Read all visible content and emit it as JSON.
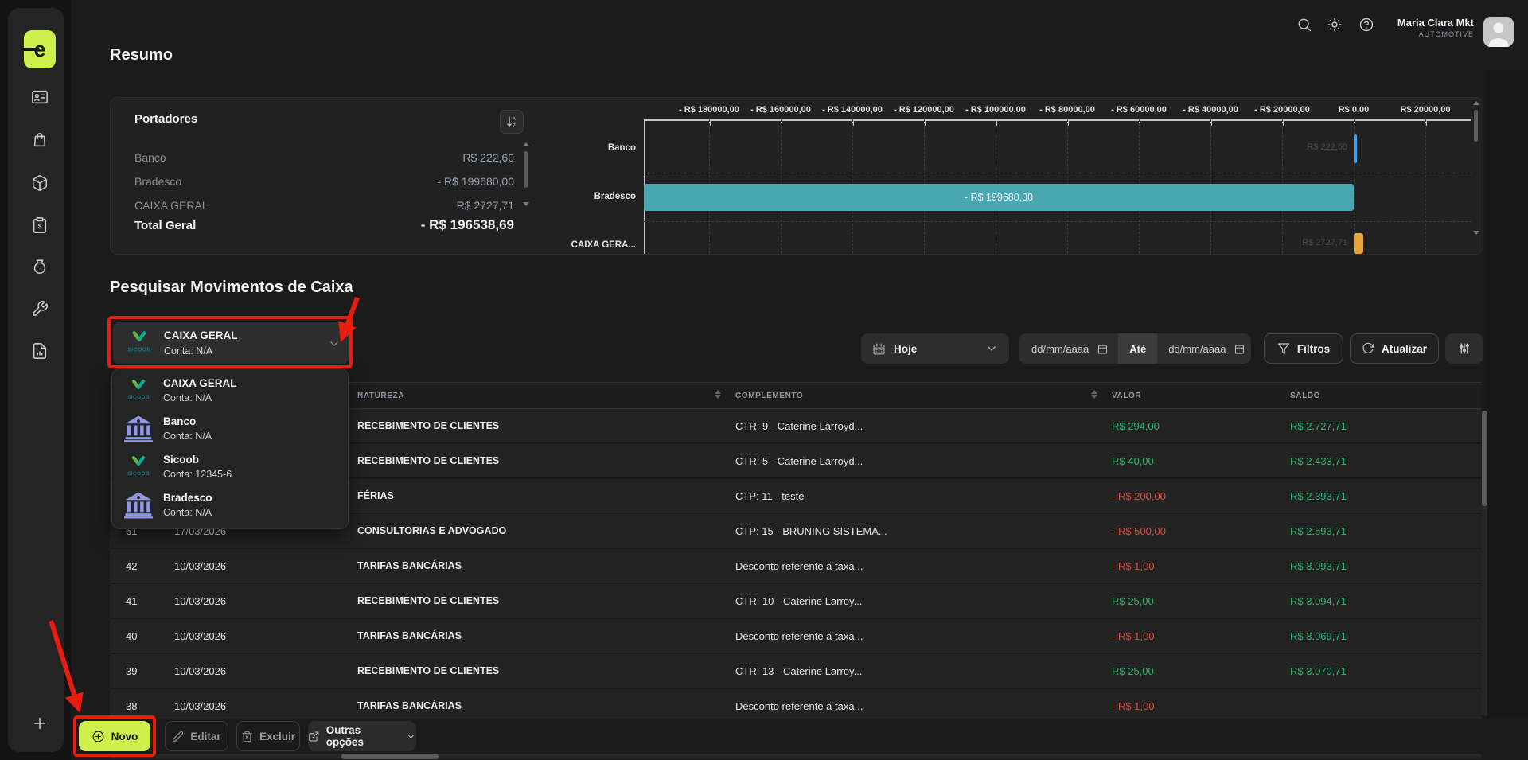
{
  "brand": {
    "sicoob_word": "SICOOB"
  },
  "sidebar": {
    "items": [
      "contacts-card",
      "shopping-bag",
      "package",
      "invoice-clipboard",
      "money-bag",
      "tools-wrench",
      "report-file"
    ]
  },
  "topbar": {
    "user_name": "Maria Clara Mkt",
    "user_role": "AUTOMOTIVE"
  },
  "resumo": {
    "title": "Resumo",
    "portadores": {
      "title": "Portadores",
      "rows": [
        {
          "label": "Banco",
          "value": "R$ 222,60"
        },
        {
          "label": "Bradesco",
          "value": "- R$ 199680,00"
        },
        {
          "label": "CAIXA GERAL",
          "value": "R$ 2727,71"
        }
      ],
      "total_label": "Total Geral",
      "total_value": "- R$ 196538,69"
    }
  },
  "chart_data": {
    "type": "bar",
    "orientation": "horizontal",
    "title": "",
    "categories": [
      "Banco",
      "Bradesco",
      "CAIXA GERAL"
    ],
    "category_labels_display": [
      "Banco",
      "Bradesco",
      "CAIXA GERA..."
    ],
    "values": [
      222.6,
      -199680.0,
      2727.71
    ],
    "bar_labels": [
      "R$ 222,60",
      "- R$ 199680,00",
      "R$ 2727,71"
    ],
    "bar_colors": [
      "#38a3f2",
      "#49a7b2",
      "#e8a33b"
    ],
    "x_ticks": [
      -180000,
      -160000,
      -140000,
      -120000,
      -100000,
      -80000,
      -60000,
      -40000,
      -20000,
      0,
      20000
    ],
    "x_tick_labels": [
      "- R$ 180000,00",
      "- R$ 160000,00",
      "- R$ 140000,00",
      "- R$ 120000,00",
      "- R$ 100000,00",
      "- R$ 80000,00",
      "- R$ 60000,00",
      "- R$ 40000,00",
      "- R$ 20000,00",
      "R$ 0,00",
      "R$ 20000,00"
    ],
    "xlim": [
      -198000,
      32000
    ],
    "grid": true,
    "legend": false
  },
  "pesquisar": {
    "title": "Pesquisar Movimentos de Caixa",
    "selected_portador": {
      "name": "CAIXA GERAL",
      "conta": "Conta: N/A",
      "icon": "sicoob"
    },
    "options": [
      {
        "name": "CAIXA GERAL",
        "conta": "Conta: N/A",
        "icon": "sicoob"
      },
      {
        "name": "Banco",
        "conta": "Conta: N/A",
        "icon": "bank"
      },
      {
        "name": "Sicoob",
        "conta": "Conta: 12345-6",
        "icon": "sicoob"
      },
      {
        "name": "Bradesco",
        "conta": "Conta: N/A",
        "icon": "bank"
      }
    ],
    "filters": {
      "period": "Hoje",
      "date_from_placeholder": "dd/mm/aaaa",
      "range_separator": "Até",
      "date_to_placeholder": "dd/mm/aaaa",
      "filtros": "Filtros",
      "atualizar": "Atualizar"
    }
  },
  "table": {
    "headers": {
      "natureza": "NATUREZA",
      "complemento": "COMPLEMENTO",
      "valor": "VALOR",
      "saldo": "SALDO"
    },
    "rows": [
      {
        "num": "",
        "date": "",
        "natureza": "RECEBIMENTO DE CLIENTES",
        "complemento": "CTR: 9 - Caterine Larroyd...",
        "valor": "R$ 294,00",
        "saldo": "R$ 2.727,71"
      },
      {
        "num": "",
        "date": "",
        "natureza": "RECEBIMENTO DE CLIENTES",
        "complemento": "CTR: 5 - Caterine Larroyd...",
        "valor": "R$ 40,00",
        "saldo": "R$ 2.433,71"
      },
      {
        "num": "",
        "date": "",
        "natureza": "FÉRIAS",
        "complemento": "CTP: 11 - teste",
        "valor": "- R$ 200,00",
        "saldo": "R$ 2.393,71"
      },
      {
        "num": "61",
        "date": "17/03/2026",
        "natureza": "CONSULTORIAS E ADVOGADO",
        "complemento": "CTP: 15 - BRUNING SISTEMA...",
        "valor": "- R$ 500,00",
        "saldo": "R$ 2.593,71"
      },
      {
        "num": "42",
        "date": "10/03/2026",
        "natureza": "TARIFAS BANCÁRIAS",
        "complemento": "Desconto referente à taxa...",
        "valor": "- R$ 1,00",
        "saldo": "R$ 3.093,71"
      },
      {
        "num": "41",
        "date": "10/03/2026",
        "natureza": "RECEBIMENTO DE CLIENTES",
        "complemento": "CTR: 10 - Caterine Larroy...",
        "valor": "R$ 25,00",
        "saldo": "R$ 3.094,71"
      },
      {
        "num": "40",
        "date": "10/03/2026",
        "natureza": "TARIFAS BANCÁRIAS",
        "complemento": "Desconto referente à taxa...",
        "valor": "- R$ 1,00",
        "saldo": "R$ 3.069,71"
      },
      {
        "num": "39",
        "date": "10/03/2026",
        "natureza": "RECEBIMENTO DE CLIENTES",
        "complemento": "CTR: 13 - Caterine Larroy...",
        "valor": "R$ 25,00",
        "saldo": "R$ 3.070,71"
      },
      {
        "num": "38",
        "date": "10/03/2026",
        "natureza": "TARIFAS BANCÁRIAS",
        "complemento": "Desconto referente à taxa...",
        "valor": "- R$ 1,00",
        "saldo": ""
      }
    ]
  },
  "footer": {
    "novo": "Novo",
    "editar": "Editar",
    "excluir": "Excluir",
    "outras": "Outras opções"
  },
  "colors": {
    "accent": "#cdf04d",
    "positive": "#2db36e",
    "negative": "#e2493d",
    "bar_teal": "#49a7b2",
    "bar_blue": "#38a3f2",
    "bar_yellow": "#e8a33b",
    "annotation": "#e81c0f",
    "bank_icon": "#8e96e8",
    "sicoob_teal": "#00ae9d",
    "sicoob_green": "#61b64a"
  }
}
